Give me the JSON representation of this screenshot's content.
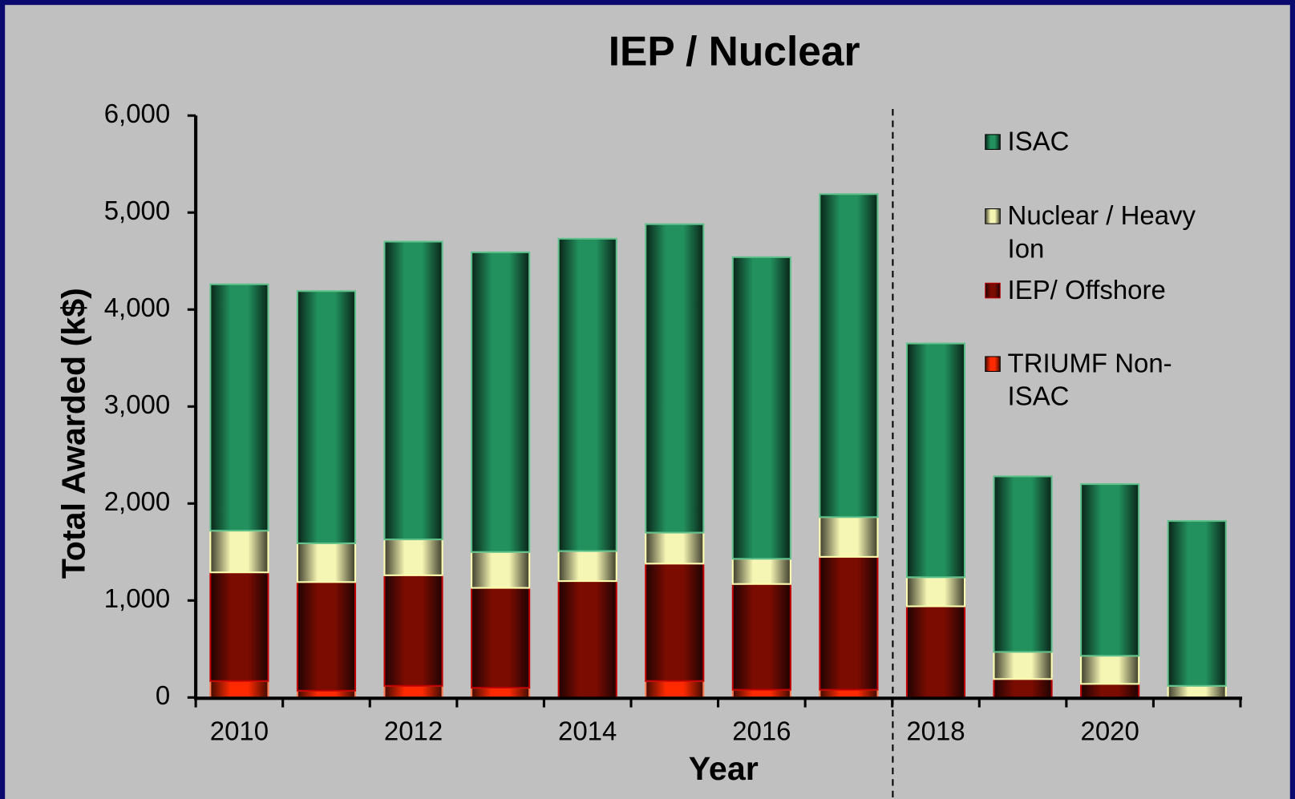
{
  "chart_data": {
    "type": "stacked_bar",
    "title": "IEP / Nuclear",
    "x_label": "Year",
    "y_label": "Total Awarded (k$)",
    "categories": [
      "2010",
      null,
      "2012",
      null,
      "2014",
      null,
      "2016",
      null,
      "2018",
      null,
      "2020",
      null
    ],
    "series": [
      {
        "name": "TRIUMF Non-ISAC",
        "color": "#ff2a00",
        "values": [
          170,
          70,
          120,
          100,
          0,
          170,
          80,
          80,
          0,
          0,
          0,
          0
        ]
      },
      {
        "name": "IEP/ Offshore",
        "color": "#7a0c02",
        "values": [
          1120,
          1120,
          1140,
          1030,
          1200,
          1210,
          1090,
          1370,
          940,
          190,
          140,
          0
        ]
      },
      {
        "name": "Nuclear / Heavy Ion",
        "color": "#f6f6b4",
        "values": [
          430,
          400,
          370,
          370,
          310,
          320,
          260,
          410,
          300,
          280,
          290,
          120
        ]
      },
      {
        "name": "ISAC",
        "color": "#22915e",
        "values": [
          2540,
          2600,
          3070,
          3090,
          3220,
          3180,
          3110,
          3330,
          2410,
          1810,
          1770,
          1700
        ]
      }
    ],
    "ylim": [
      0,
      6000
    ],
    "yticks": [
      0,
      {
        "value": 1000,
        "label": "1,000"
      },
      {
        "value": 2000,
        "label": "2,000"
      },
      {
        "value": 3000,
        "label": "3,000"
      },
      {
        "value": 4000,
        "label": "4,000"
      },
      {
        "value": 5000,
        "label": "5,000"
      },
      {
        "value": 6000,
        "label": "6,000"
      }
    ]
  }
}
